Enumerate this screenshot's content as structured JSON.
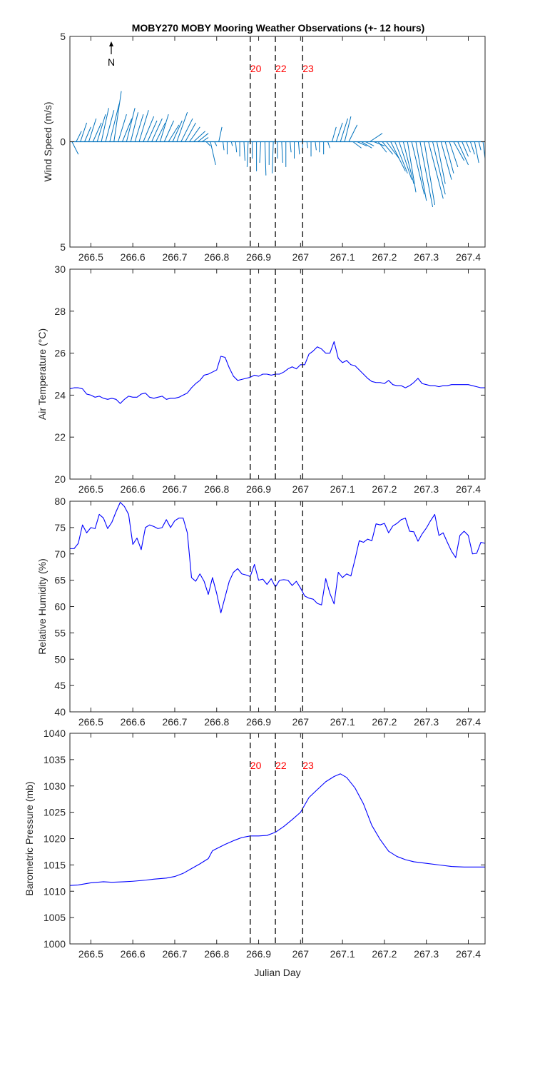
{
  "title": "MOBY270 MOBY Mooring Weather Observations (+- 12 hours)",
  "colors": {
    "line": "#0000ff",
    "wind": "#0072bd",
    "marker_text": "#ff0000",
    "dashed": "#262626",
    "axes": "#262626"
  },
  "north_label": "N",
  "xlabel": "Julian Day",
  "markers": {
    "x": [
      266.88,
      266.94,
      267.005
    ],
    "labels": [
      "20",
      "22",
      "23"
    ]
  },
  "chart_data": [
    {
      "type": "quiver",
      "ylabel": "Wind Speed (m/s)",
      "xlim": [
        266.45,
        267.44
      ],
      "ylim": [
        -5,
        5
      ],
      "yticks": [
        -5,
        0,
        5
      ],
      "ytick_labels": [
        "5",
        "0",
        "5"
      ],
      "xticks": [
        266.5,
        266.6,
        266.7,
        266.8,
        266.9,
        267.0,
        267.1,
        267.2,
        267.3,
        267.4
      ],
      "xtick_labels": [
        "266.5",
        "266.6",
        "266.7",
        "266.8",
        "266.9",
        "267",
        "267.1",
        "267.2",
        "267.3",
        "267.4"
      ],
      "markers_labeled": true,
      "x": [
        266.455,
        266.465,
        266.475,
        266.485,
        266.495,
        266.505,
        266.515,
        266.525,
        266.535,
        266.545,
        266.555,
        266.565,
        266.575,
        266.585,
        266.595,
        266.605,
        266.615,
        266.625,
        266.635,
        266.645,
        266.655,
        266.665,
        266.675,
        266.685,
        266.695,
        266.705,
        266.715,
        266.725,
        266.735,
        266.745,
        266.755,
        266.765,
        266.775,
        266.785,
        266.795,
        266.805,
        266.815,
        266.825,
        266.835,
        266.845,
        266.855,
        266.865,
        266.875,
        266.885,
        266.895,
        266.905,
        266.915,
        266.925,
        266.935,
        266.945,
        266.955,
        266.965,
        266.975,
        266.985,
        266.995,
        267.005,
        267.015,
        267.025,
        267.035,
        267.045,
        267.055,
        267.065,
        267.075,
        267.085,
        267.095,
        267.105,
        267.115,
        267.125,
        267.135,
        267.145,
        267.155,
        267.165,
        267.175,
        267.185,
        267.195,
        267.205,
        267.215,
        267.225,
        267.235,
        267.245,
        267.255,
        267.265,
        267.275,
        267.285,
        267.295,
        267.305,
        267.315,
        267.325,
        267.335,
        267.345,
        267.355,
        267.365,
        267.375,
        267.385,
        267.395,
        267.405,
        267.415,
        267.425,
        267.435
      ],
      "u": [
        0.3,
        0.25,
        0.3,
        0.3,
        0.35,
        0.4,
        0.4,
        0.35,
        0.4,
        0.45,
        0.35,
        0.4,
        0.45,
        0.4,
        0.35,
        0.4,
        0.45,
        0.5,
        0.45,
        0.5,
        0.45,
        0.4,
        0.45,
        0.5,
        0.45,
        0.5,
        0.55,
        0.5,
        0.5,
        0.55,
        0.5,
        0.3,
        0.2,
        0.25,
        0.1,
        0.15,
        0.05,
        0.0,
        0.05,
        0.05,
        0.0,
        0.05,
        -0.05,
        0.0,
        0.0,
        -0.05,
        0.05,
        0.0,
        -0.05,
        0.0,
        0.05,
        0.0,
        0.05,
        0.0,
        0.05,
        0.0,
        0.05,
        0.0,
        0.05,
        0.0,
        0.0,
        0.1,
        0.2,
        0.3,
        0.35,
        0.3,
        0.4,
        0.4,
        0.45,
        0.5,
        0.4,
        0.6,
        0.5,
        0.4,
        0.5,
        0.6,
        0.7,
        0.6,
        0.6,
        0.5,
        0.4,
        0.6,
        0.5,
        0.6,
        0.5,
        0.7,
        0.6,
        0.4,
        0.5,
        0.4,
        0.4,
        0.5,
        0.5,
        0.3,
        0.2,
        0.2,
        0.2,
        0.1,
        0.1
      ],
      "v": [
        -0.6,
        0.5,
        0.9,
        0.7,
        1.1,
        0.9,
        1.3,
        1.6,
        1.5,
        1.8,
        2.4,
        1.3,
        1.1,
        1.6,
        1.4,
        1.3,
        1.5,
        1.2,
        1.0,
        1.1,
        0.9,
        1.3,
        1.0,
        0.8,
        1.0,
        1.4,
        1.1,
        0.9,
        0.7,
        0.5,
        0.4,
        0.2,
        -0.2,
        -1.1,
        -0.2,
        0.7,
        -0.4,
        -0.6,
        -0.2,
        -0.5,
        -0.7,
        -0.9,
        -1.2,
        -0.8,
        -1.4,
        -1.0,
        -1.6,
        -1.1,
        -1.5,
        -0.8,
        -1.0,
        -1.2,
        -0.5,
        -0.8,
        -0.6,
        -0.5,
        -0.3,
        -0.7,
        -0.4,
        -0.5,
        -0.6,
        -0.3,
        0.7,
        0.9,
        1.1,
        1.2,
        0.8,
        -0.3,
        -0.2,
        -0.3,
        -0.2,
        0.4,
        -0.2,
        -0.5,
        -0.6,
        -0.8,
        -1.4,
        -1.5,
        -1.8,
        -2.0,
        -2.4,
        -2.5,
        -2.8,
        -3.1,
        -3.0,
        -2.7,
        -2.5,
        -2.0,
        -1.8,
        -1.5,
        -1.2,
        -0.9,
        -1.1,
        -0.7,
        -0.5,
        -0.6,
        -1.0,
        -0.4,
        -0.8
      ]
    },
    {
      "type": "line",
      "ylabel": "Air Temperature (°C)",
      "xlim": [
        266.45,
        267.44
      ],
      "ylim": [
        20,
        30
      ],
      "yticks": [
        20,
        22,
        24,
        26,
        28,
        30
      ],
      "ytick_labels": [
        "20",
        "22",
        "24",
        "26",
        "28",
        "30"
      ],
      "xticks": [
        266.5,
        266.6,
        266.7,
        266.8,
        266.9,
        267.0,
        267.1,
        267.2,
        267.3,
        267.4
      ],
      "xtick_labels": [
        "266.5",
        "266.6",
        "266.7",
        "266.8",
        "266.9",
        "267",
        "267.1",
        "267.2",
        "267.3",
        "267.4"
      ],
      "markers_labeled": false,
      "x": [
        266.45,
        266.46,
        266.47,
        266.48,
        266.49,
        266.5,
        266.51,
        266.52,
        266.53,
        266.54,
        266.55,
        266.56,
        266.57,
        266.58,
        266.59,
        266.6,
        266.61,
        266.62,
        266.63,
        266.64,
        266.65,
        266.66,
        266.67,
        266.68,
        266.69,
        266.7,
        266.71,
        266.72,
        266.73,
        266.74,
        266.75,
        266.76,
        266.77,
        266.78,
        266.79,
        266.8,
        266.81,
        266.82,
        266.83,
        266.84,
        266.85,
        266.86,
        266.87,
        266.88,
        266.89,
        266.9,
        266.91,
        266.92,
        266.93,
        266.94,
        266.95,
        266.96,
        266.97,
        266.98,
        266.99,
        267.0,
        267.01,
        267.02,
        267.03,
        267.04,
        267.05,
        267.06,
        267.07,
        267.08,
        267.09,
        267.1,
        267.11,
        267.12,
        267.13,
        267.14,
        267.15,
        267.16,
        267.17,
        267.18,
        267.19,
        267.2,
        267.21,
        267.22,
        267.23,
        267.24,
        267.25,
        267.26,
        267.27,
        267.28,
        267.29,
        267.3,
        267.31,
        267.32,
        267.33,
        267.34,
        267.35,
        267.36,
        267.37,
        267.38,
        267.39,
        267.4,
        267.41,
        267.42,
        267.43,
        267.44
      ],
      "y": [
        24.3,
        24.35,
        24.35,
        24.3,
        24.05,
        24.0,
        23.9,
        23.95,
        23.85,
        23.8,
        23.85,
        23.8,
        23.6,
        23.8,
        23.95,
        23.9,
        23.9,
        24.05,
        24.1,
        23.9,
        23.85,
        23.9,
        23.95,
        23.8,
        23.85,
        23.85,
        23.9,
        24.0,
        24.1,
        24.35,
        24.55,
        24.7,
        24.95,
        25.0,
        25.1,
        25.2,
        25.85,
        25.8,
        25.3,
        24.9,
        24.7,
        24.75,
        24.8,
        24.85,
        24.95,
        24.9,
        25.0,
        25.0,
        24.95,
        25.0,
        25.0,
        25.1,
        25.25,
        25.35,
        25.25,
        25.45,
        25.45,
        25.95,
        26.1,
        26.3,
        26.2,
        26.0,
        26.0,
        26.55,
        25.75,
        25.55,
        25.65,
        25.45,
        25.4,
        25.2,
        25.0,
        24.8,
        24.65,
        24.6,
        24.6,
        24.55,
        24.7,
        24.5,
        24.45,
        24.45,
        24.35,
        24.45,
        24.6,
        24.8,
        24.55,
        24.5,
        24.45,
        24.45,
        24.4,
        24.45,
        24.45,
        24.5,
        24.5,
        24.5,
        24.5,
        24.5,
        24.45,
        24.4,
        24.35,
        24.35
      ]
    },
    {
      "type": "line",
      "ylabel": "Relative Humidity (%)",
      "xlim": [
        266.45,
        267.44
      ],
      "ylim": [
        40,
        80
      ],
      "yticks": [
        40,
        45,
        50,
        55,
        60,
        65,
        70,
        75,
        80
      ],
      "ytick_labels": [
        "40",
        "45",
        "50",
        "55",
        "60",
        "65",
        "70",
        "75",
        "80"
      ],
      "xticks": [
        266.5,
        266.6,
        266.7,
        266.8,
        266.9,
        267.0,
        267.1,
        267.2,
        267.3,
        267.4
      ],
      "xtick_labels": [
        "266.5",
        "266.6",
        "266.7",
        "266.8",
        "266.9",
        "267",
        "267.1",
        "267.2",
        "267.3",
        "267.4"
      ],
      "markers_labeled": false,
      "x": [
        266.45,
        266.46,
        266.47,
        266.48,
        266.49,
        266.5,
        266.51,
        266.52,
        266.53,
        266.54,
        266.55,
        266.56,
        266.57,
        266.58,
        266.59,
        266.6,
        266.61,
        266.62,
        266.63,
        266.64,
        266.65,
        266.66,
        266.67,
        266.68,
        266.69,
        266.7,
        266.71,
        266.72,
        266.73,
        266.74,
        266.75,
        266.76,
        266.77,
        266.78,
        266.79,
        266.8,
        266.81,
        266.82,
        266.83,
        266.84,
        266.85,
        266.86,
        266.87,
        266.88,
        266.89,
        266.9,
        266.91,
        266.92,
        266.93,
        266.94,
        266.95,
        266.96,
        266.97,
        266.98,
        266.99,
        267.0,
        267.01,
        267.02,
        267.03,
        267.04,
        267.05,
        267.06,
        267.07,
        267.08,
        267.09,
        267.1,
        267.11,
        267.12,
        267.13,
        267.14,
        267.15,
        267.16,
        267.17,
        267.18,
        267.19,
        267.2,
        267.21,
        267.22,
        267.23,
        267.24,
        267.25,
        267.26,
        267.27,
        267.28,
        267.29,
        267.3,
        267.31,
        267.32,
        267.33,
        267.34,
        267.35,
        267.36,
        267.37,
        267.38,
        267.39,
        267.4,
        267.41,
        267.42,
        267.43,
        267.44
      ],
      "y": [
        71.0,
        71.0,
        72.0,
        75.5,
        74.0,
        75.0,
        74.8,
        77.5,
        76.8,
        74.8,
        76.0,
        78.0,
        79.8,
        79.0,
        77.5,
        71.8,
        73.0,
        70.8,
        75.0,
        75.5,
        75.2,
        74.8,
        75.0,
        76.5,
        75.0,
        76.3,
        76.8,
        76.8,
        74.0,
        65.5,
        64.8,
        66.2,
        64.8,
        62.3,
        65.5,
        62.5,
        58.8,
        61.8,
        64.8,
        66.5,
        67.2,
        66.2,
        66.0,
        65.7,
        68.0,
        65.0,
        65.2,
        64.2,
        65.3,
        63.7,
        65.0,
        65.1,
        65.0,
        64.0,
        64.8,
        63.5,
        62.0,
        61.6,
        61.4,
        60.6,
        60.3,
        65.3,
        62.5,
        60.5,
        66.5,
        65.5,
        66.2,
        65.8,
        69.0,
        72.5,
        72.2,
        72.8,
        72.5,
        75.7,
        75.5,
        75.8,
        74.0,
        75.3,
        75.8,
        76.5,
        76.8,
        74.3,
        74.2,
        72.4,
        73.8,
        74.9,
        76.3,
        77.5,
        73.5,
        74.0,
        72.2,
        70.5,
        69.3,
        73.5,
        74.3,
        73.5,
        70.0,
        70.1,
        72.2,
        72.0
      ]
    },
    {
      "type": "line",
      "ylabel": "Barometric Pressure (mb)",
      "xlim": [
        266.45,
        267.44
      ],
      "ylim": [
        1000,
        1040
      ],
      "yticks": [
        1000,
        1005,
        1010,
        1015,
        1020,
        1025,
        1030,
        1035,
        1040
      ],
      "ytick_labels": [
        "1000",
        "1005",
        "1010",
        "1015",
        "1020",
        "1025",
        "1030",
        "1035",
        "1040"
      ],
      "xticks": [
        266.5,
        266.6,
        266.7,
        266.8,
        266.9,
        267.0,
        267.1,
        267.2,
        267.3,
        267.4
      ],
      "xtick_labels": [
        "266.5",
        "266.6",
        "266.7",
        "266.8",
        "266.9",
        "267",
        "267.1",
        "267.2",
        "267.3",
        "267.4"
      ],
      "markers_labeled": true,
      "x": [
        266.45,
        266.47,
        266.5,
        266.53,
        266.55,
        266.58,
        266.6,
        266.63,
        266.65,
        266.68,
        266.7,
        266.72,
        266.74,
        266.76,
        266.78,
        266.79,
        266.8,
        266.82,
        266.84,
        266.86,
        266.88,
        266.9,
        266.92,
        266.94,
        266.96,
        266.98,
        267.0,
        267.02,
        267.04,
        267.06,
        267.08,
        267.095,
        267.11,
        267.13,
        267.15,
        267.17,
        267.19,
        267.21,
        267.23,
        267.25,
        267.27,
        267.3,
        267.33,
        267.36,
        267.39,
        267.41,
        267.44
      ],
      "y": [
        1011.1,
        1011.2,
        1011.6,
        1011.8,
        1011.7,
        1011.8,
        1011.9,
        1012.1,
        1012.3,
        1012.5,
        1012.8,
        1013.4,
        1014.3,
        1015.2,
        1016.2,
        1017.7,
        1018.1,
        1018.9,
        1019.6,
        1020.2,
        1020.5,
        1020.5,
        1020.6,
        1021.2,
        1022.3,
        1023.6,
        1025.0,
        1027.8,
        1029.3,
        1030.8,
        1031.8,
        1032.3,
        1031.6,
        1029.6,
        1026.6,
        1022.5,
        1019.8,
        1017.6,
        1016.6,
        1016.0,
        1015.6,
        1015.3,
        1015.0,
        1014.7,
        1014.6,
        1014.6,
        1014.6
      ]
    }
  ]
}
